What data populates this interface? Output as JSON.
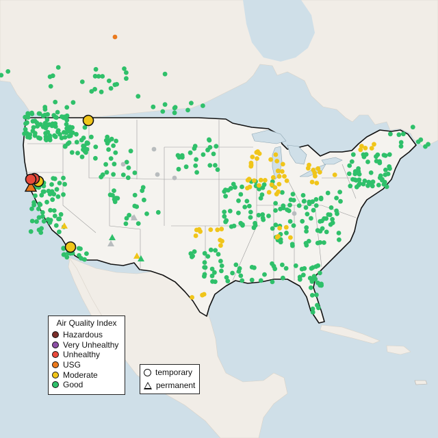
{
  "legend_aqi": {
    "title": "Air Quality Index",
    "items": [
      {
        "label": "Hazardous",
        "color": "#7a2e2a"
      },
      {
        "label": "Very Unhealthy",
        "color": "#8c50a5"
      },
      {
        "label": "Unhealthy",
        "color": "#e84a3c"
      },
      {
        "label": "USG",
        "color": "#ea7a1e"
      },
      {
        "label": "Moderate",
        "color": "#f0c51a"
      },
      {
        "label": "Good",
        "color": "#2fc06a"
      }
    ]
  },
  "legend_type": {
    "items": [
      {
        "label": "temporary",
        "shape": "circle"
      },
      {
        "label": "permanent",
        "shape": "triangle"
      }
    ]
  },
  "colors": {
    "ocean": "#cfdfe8",
    "land": "#f1ede7",
    "us_land": "#f5f3ef",
    "good": "#2fc06a",
    "moderate": "#f0c51a",
    "usg": "#ea7a1e",
    "unhealthy": "#e84a3c",
    "no_data": "#b8bcbe"
  }
}
